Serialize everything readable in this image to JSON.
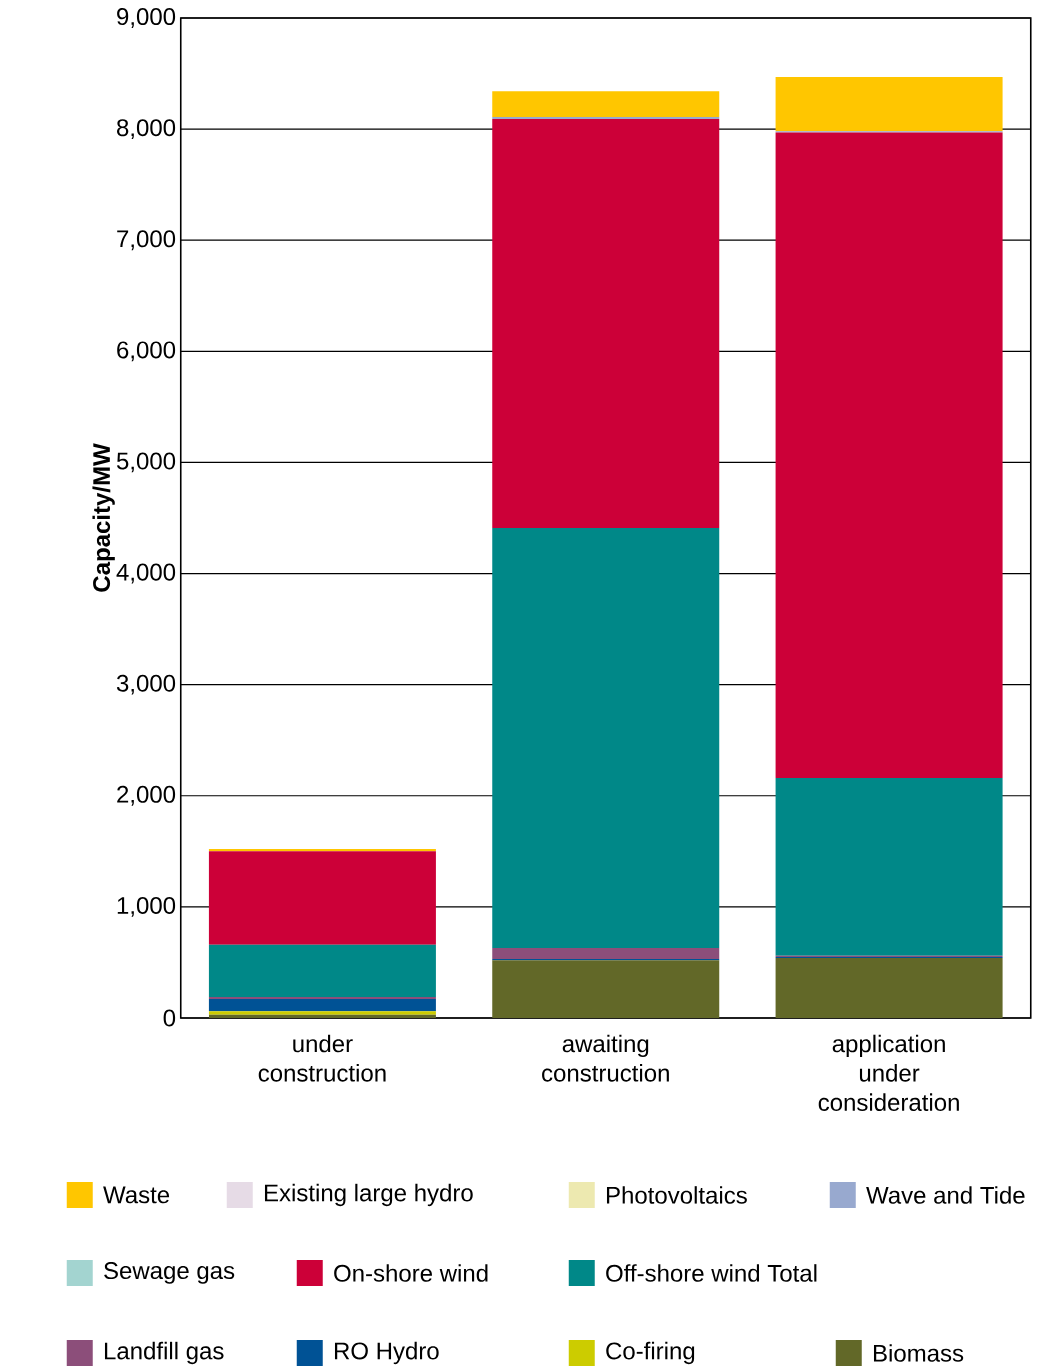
{
  "chart_data": {
    "type": "bar",
    "stacked": true,
    "ylabel": "Capacity/MW",
    "categories": [
      "under construction",
      "awaiting construction",
      "application under consideration"
    ],
    "ylim": [
      0,
      9000
    ],
    "yticks": [
      0,
      {
        "value": 1000,
        "label": "1,000"
      },
      {
        "value": 2000,
        "label": "2,000"
      },
      {
        "value": 3000,
        "label": "3,000"
      },
      {
        "value": 4000,
        "label": "4,000"
      },
      {
        "value": 5000,
        "label": "5,000"
      },
      {
        "value": 6000,
        "label": "6,000"
      },
      {
        "value": 7000,
        "label": "7,000"
      },
      {
        "value": 8000,
        "label": "8,000"
      },
      {
        "value": 9000,
        "label": "9,000"
      }
    ],
    "grid": "y",
    "legend": "bottom",
    "series": [
      {
        "name": "Biomass",
        "color": "#626828",
        "values": [
          30,
          520,
          540
        ]
      },
      {
        "name": "Co-firing",
        "color": "#cccc00",
        "values": [
          30,
          0,
          0
        ]
      },
      {
        "name": "RO Hydro",
        "color": "#005295",
        "values": [
          110,
          10,
          10
        ]
      },
      {
        "name": "Landfill gas",
        "color": "#8c4e7a",
        "values": [
          20,
          100,
          10
        ]
      },
      {
        "name": "Off-shore wind Total",
        "color": "#008888",
        "values": [
          470,
          3780,
          1600
        ]
      },
      {
        "name": "On-shore wind",
        "color": "#cc0038",
        "values": [
          840,
          3680,
          5810
        ]
      },
      {
        "name": "Sewage gas",
        "color": "#a3d4d0",
        "values": [
          0,
          0,
          0
        ]
      },
      {
        "name": "Wave and Tide",
        "color": "#98a9cf",
        "values": [
          0,
          20,
          10
        ]
      },
      {
        "name": "Photovoltaics",
        "color": "#ede9b0",
        "values": [
          0,
          0,
          0
        ]
      },
      {
        "name": "Existing large hydro",
        "color": "#e6dbe6",
        "values": [
          0,
          0,
          0
        ]
      },
      {
        "name": "Waste",
        "color": "#ffc600",
        "values": [
          20,
          230,
          490
        ]
      }
    ]
  }
}
